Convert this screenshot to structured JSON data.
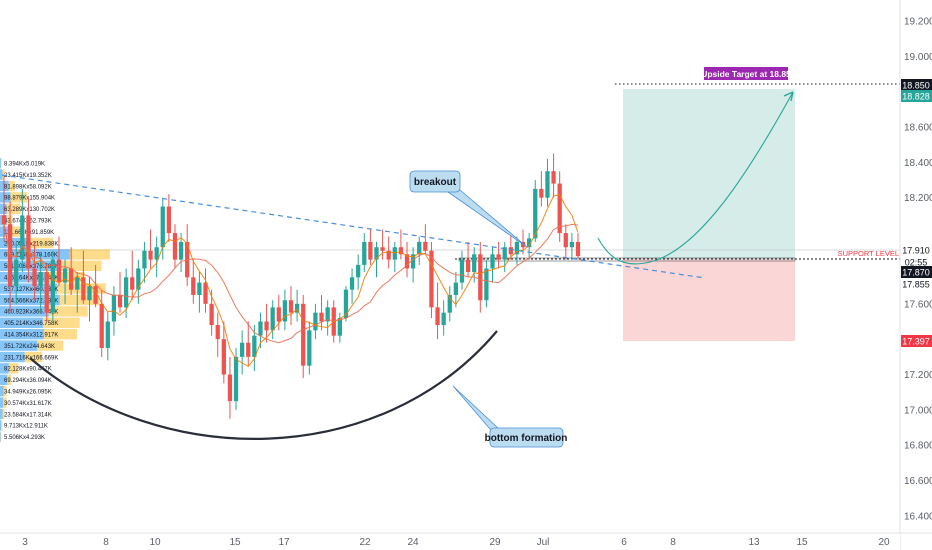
{
  "colors": {
    "up": "#26a69a",
    "down": "#ef5350",
    "ma_fast": "#f57c00",
    "ma_slow": "#ef6c4b",
    "trendline": "#4a8fd6",
    "target_zone": "#d5ece8",
    "stop_zone": "#fbd6d6",
    "vp_up": "#2196f3",
    "vp_down": "#fbc02d",
    "target_tag": "#9c27b0",
    "price_tag": "#131722",
    "stop_tag": "#f23645",
    "support_text": "#f23645"
  },
  "chart_data": {
    "type": "candlestick",
    "price_axis": {
      "ylim": [
        16.32,
        19.36
      ],
      "ticks": [
        "19.200",
        "19.000",
        "18.600",
        "18.400",
        "18.200",
        "17.600",
        "17.400",
        "17.200",
        "17.000",
        "16.800",
        "16.600",
        "16.400"
      ]
    },
    "time_axis": {
      "ticks": [
        "3",
        "8",
        "10",
        "15",
        "17",
        "22",
        "24",
        "29",
        "Jul",
        "6",
        "8",
        "13",
        "15",
        "20"
      ]
    },
    "price_labels": [
      {
        "value": "18.850",
        "kind": "target",
        "name": "upside-target-price-tag"
      },
      {
        "value": "18.828",
        "kind": "up",
        "name": "entry-target-price-tag"
      },
      {
        "value": "17.910",
        "kind": "plain",
        "name": "support-price-tag"
      },
      {
        "value": "02:55",
        "kind": "timer",
        "name": "bar-countdown-tag"
      },
      {
        "value": "17.870",
        "kind": "dark",
        "name": "last-price-tag"
      },
      {
        "value": "17.855",
        "kind": "plain",
        "name": "lower-price-tag"
      },
      {
        "value": "17.397",
        "kind": "stop",
        "name": "stop-price-tag"
      }
    ],
    "annotations": {
      "target": "Upside Target at 18.85",
      "support": "SUPPORT LEVEL",
      "breakout": "breakout",
      "bottom": "bottom formation"
    },
    "volume_profile": [
      {
        "label": "8.394Kx5.019K",
        "up": 8.394,
        "down": 5.019
      },
      {
        "label": "23.415Kx19.352K",
        "up": 23.415,
        "down": 19.352
      },
      {
        "label": "81.898Kx58.092K",
        "up": 81.898,
        "down": 58.092
      },
      {
        "label": "98.879Kx155.904K",
        "up": 98.879,
        "down": 155.904
      },
      {
        "label": "63.289Kx130.702K",
        "up": 63.289,
        "down": 130.702
      },
      {
        "label": "63.674Kx52.793K",
        "up": 63.674,
        "down": 52.793
      },
      {
        "label": "111.663Kx91.859K",
        "up": 111.663,
        "down": 91.859
      },
      {
        "label": "280.051Kx219.838K",
        "up": 280.051,
        "down": 219.838
      },
      {
        "label": "659.116Kx378.160K",
        "up": 659.116,
        "down": 378.16
      },
      {
        "label": "581.806Kx376.782K",
        "up": 581.806,
        "down": 376.782
      },
      {
        "label": "426.164Kx373.847K",
        "up": 426.164,
        "down": 373.847
      },
      {
        "label": "537.127Kx460.231K",
        "up": 537.127,
        "down": 460.231
      },
      {
        "label": "564.666Kx372.393K",
        "up": 564.666,
        "down": 372.393
      },
      {
        "label": "460.923Kx366.441K",
        "up": 460.923,
        "down": 366.441
      },
      {
        "label": "405.214Kx346.758K",
        "up": 405.214,
        "down": 346.758
      },
      {
        "label": "414.354Kx312.917K",
        "up": 414.354,
        "down": 312.917
      },
      {
        "label": "351.72Kx244.643K",
        "up": 351.72,
        "down": 244.643
      },
      {
        "label": "231.716Kx166.669K",
        "up": 231.716,
        "down": 166.669
      },
      {
        "label": "82.128Kx90.447K",
        "up": 82.128,
        "down": 90.447
      },
      {
        "label": "69.294Kx36.094K",
        "up": 69.294,
        "down": 36.094
      },
      {
        "label": "34.949Kx26.095K",
        "up": 34.949,
        "down": 26.095
      },
      {
        "label": "30.574Kx31.617K",
        "up": 30.574,
        "down": 31.617
      },
      {
        "label": "23.584Kx17.314K",
        "up": 23.584,
        "down": 17.314
      },
      {
        "label": "9.713Kx12.911K",
        "up": 9.713,
        "down": 12.911
      },
      {
        "label": "5.506Kx4.293K",
        "up": 5.506,
        "down": 4.293
      }
    ],
    "ohlc": [
      [
        18.1,
        18.32,
        17.95,
        18.05
      ],
      [
        18.05,
        18.18,
        17.55,
        17.7
      ],
      [
        17.7,
        17.95,
        17.6,
        17.85
      ],
      [
        17.85,
        18.25,
        17.78,
        18.1
      ],
      [
        18.1,
        18.2,
        17.72,
        17.8
      ],
      [
        17.8,
        17.95,
        17.62,
        17.7
      ],
      [
        17.7,
        17.88,
        17.55,
        17.78
      ],
      [
        17.78,
        17.82,
        17.5,
        17.55
      ],
      [
        17.55,
        17.9,
        17.5,
        17.85
      ],
      [
        17.85,
        17.98,
        17.7,
        17.72
      ],
      [
        17.72,
        17.85,
        17.6,
        17.8
      ],
      [
        17.8,
        17.92,
        17.65,
        17.68
      ],
      [
        17.68,
        17.78,
        17.55,
        17.75
      ],
      [
        17.75,
        17.9,
        17.6,
        17.62
      ],
      [
        17.62,
        17.75,
        17.5,
        17.7
      ],
      [
        17.7,
        17.82,
        17.58,
        17.6
      ],
      [
        17.6,
        17.68,
        17.3,
        17.35
      ],
      [
        17.35,
        17.55,
        17.28,
        17.5
      ],
      [
        17.5,
        17.7,
        17.42,
        17.65
      ],
      [
        17.65,
        17.78,
        17.55,
        17.58
      ],
      [
        17.58,
        17.8,
        17.52,
        17.75
      ],
      [
        17.75,
        17.9,
        17.62,
        17.68
      ],
      [
        17.68,
        17.85,
        17.6,
        17.8
      ],
      [
        17.8,
        17.95,
        17.72,
        17.9
      ],
      [
        17.9,
        18.02,
        17.8,
        17.85
      ],
      [
        17.85,
        17.98,
        17.75,
        17.92
      ],
      [
        17.92,
        18.2,
        17.85,
        18.15
      ],
      [
        18.15,
        18.22,
        17.95,
        18.0
      ],
      [
        18.0,
        18.05,
        17.8,
        17.85
      ],
      [
        17.85,
        18.0,
        17.78,
        17.95
      ],
      [
        17.95,
        18.05,
        17.7,
        17.75
      ],
      [
        17.75,
        17.85,
        17.6,
        17.65
      ],
      [
        17.65,
        17.78,
        17.55,
        17.72
      ],
      [
        17.72,
        17.8,
        17.55,
        17.6
      ],
      [
        17.6,
        17.68,
        17.42,
        17.48
      ],
      [
        17.48,
        17.55,
        17.3,
        17.4
      ],
      [
        17.4,
        17.5,
        17.15,
        17.2
      ],
      [
        17.2,
        17.3,
        16.95,
        17.05
      ],
      [
        17.05,
        17.35,
        17.0,
        17.3
      ],
      [
        17.3,
        17.45,
        17.2,
        17.38
      ],
      [
        17.38,
        17.5,
        17.25,
        17.3
      ],
      [
        17.3,
        17.48,
        17.22,
        17.42
      ],
      [
        17.42,
        17.55,
        17.35,
        17.5
      ],
      [
        17.5,
        17.6,
        17.38,
        17.45
      ],
      [
        17.45,
        17.62,
        17.4,
        17.58
      ],
      [
        17.58,
        17.65,
        17.45,
        17.5
      ],
      [
        17.5,
        17.68,
        17.45,
        17.62
      ],
      [
        17.62,
        17.7,
        17.48,
        17.55
      ],
      [
        17.55,
        17.68,
        17.5,
        17.6
      ],
      [
        17.6,
        17.65,
        17.18,
        17.25
      ],
      [
        17.25,
        17.5,
        17.2,
        17.45
      ],
      [
        17.45,
        17.6,
        17.4,
        17.55
      ],
      [
        17.55,
        17.65,
        17.45,
        17.5
      ],
      [
        17.5,
        17.62,
        17.42,
        17.58
      ],
      [
        17.58,
        17.62,
        17.38,
        17.42
      ],
      [
        17.42,
        17.55,
        17.38,
        17.52
      ],
      [
        17.52,
        17.7,
        17.5,
        17.68
      ],
      [
        17.68,
        17.8,
        17.6,
        17.75
      ],
      [
        17.75,
        17.88,
        17.68,
        17.82
      ],
      [
        17.82,
        18.0,
        17.78,
        17.95
      ],
      [
        17.95,
        18.02,
        17.82,
        17.85
      ],
      [
        17.85,
        17.95,
        17.75,
        17.92
      ],
      [
        17.92,
        18.02,
        17.85,
        17.9
      ],
      [
        17.9,
        17.98,
        17.8,
        17.85
      ],
      [
        17.85,
        17.95,
        17.78,
        17.92
      ],
      [
        17.92,
        18.02,
        17.85,
        17.88
      ],
      [
        17.88,
        17.95,
        17.75,
        17.8
      ],
      [
        17.8,
        17.92,
        17.72,
        17.88
      ],
      [
        17.88,
        17.98,
        17.82,
        17.95
      ],
      [
        17.95,
        18.05,
        17.88,
        17.9
      ],
      [
        17.9,
        17.95,
        17.52,
        17.58
      ],
      [
        17.58,
        17.72,
        17.4,
        17.48
      ],
      [
        17.48,
        17.62,
        17.42,
        17.55
      ],
      [
        17.55,
        17.7,
        17.5,
        17.65
      ],
      [
        17.65,
        17.78,
        17.58,
        17.72
      ],
      [
        17.72,
        17.9,
        17.68,
        17.85
      ],
      [
        17.85,
        17.95,
        17.75,
        17.78
      ],
      [
        17.78,
        17.92,
        17.72,
        17.88
      ],
      [
        17.88,
        17.95,
        17.55,
        17.62
      ],
      [
        17.62,
        17.85,
        17.58,
        17.8
      ],
      [
        17.8,
        17.92,
        17.72,
        17.88
      ],
      [
        17.88,
        17.95,
        17.8,
        17.85
      ],
      [
        17.85,
        17.95,
        17.78,
        17.92
      ],
      [
        17.92,
        18.0,
        17.85,
        17.88
      ],
      [
        17.88,
        17.98,
        17.82,
        17.95
      ],
      [
        17.95,
        18.02,
        17.88,
        17.92
      ],
      [
        17.92,
        18.0,
        17.85,
        17.97
      ],
      [
        17.97,
        18.3,
        17.95,
        18.25
      ],
      [
        18.25,
        18.35,
        18.15,
        18.2
      ],
      [
        18.2,
        18.42,
        18.15,
        18.35
      ],
      [
        18.35,
        18.45,
        18.2,
        18.28
      ],
      [
        18.28,
        18.35,
        17.95,
        18.0
      ],
      [
        18.0,
        18.05,
        17.85,
        17.92
      ],
      [
        17.92,
        18.0,
        17.85,
        17.95
      ],
      [
        17.95,
        18.0,
        17.85,
        17.87
      ]
    ]
  }
}
